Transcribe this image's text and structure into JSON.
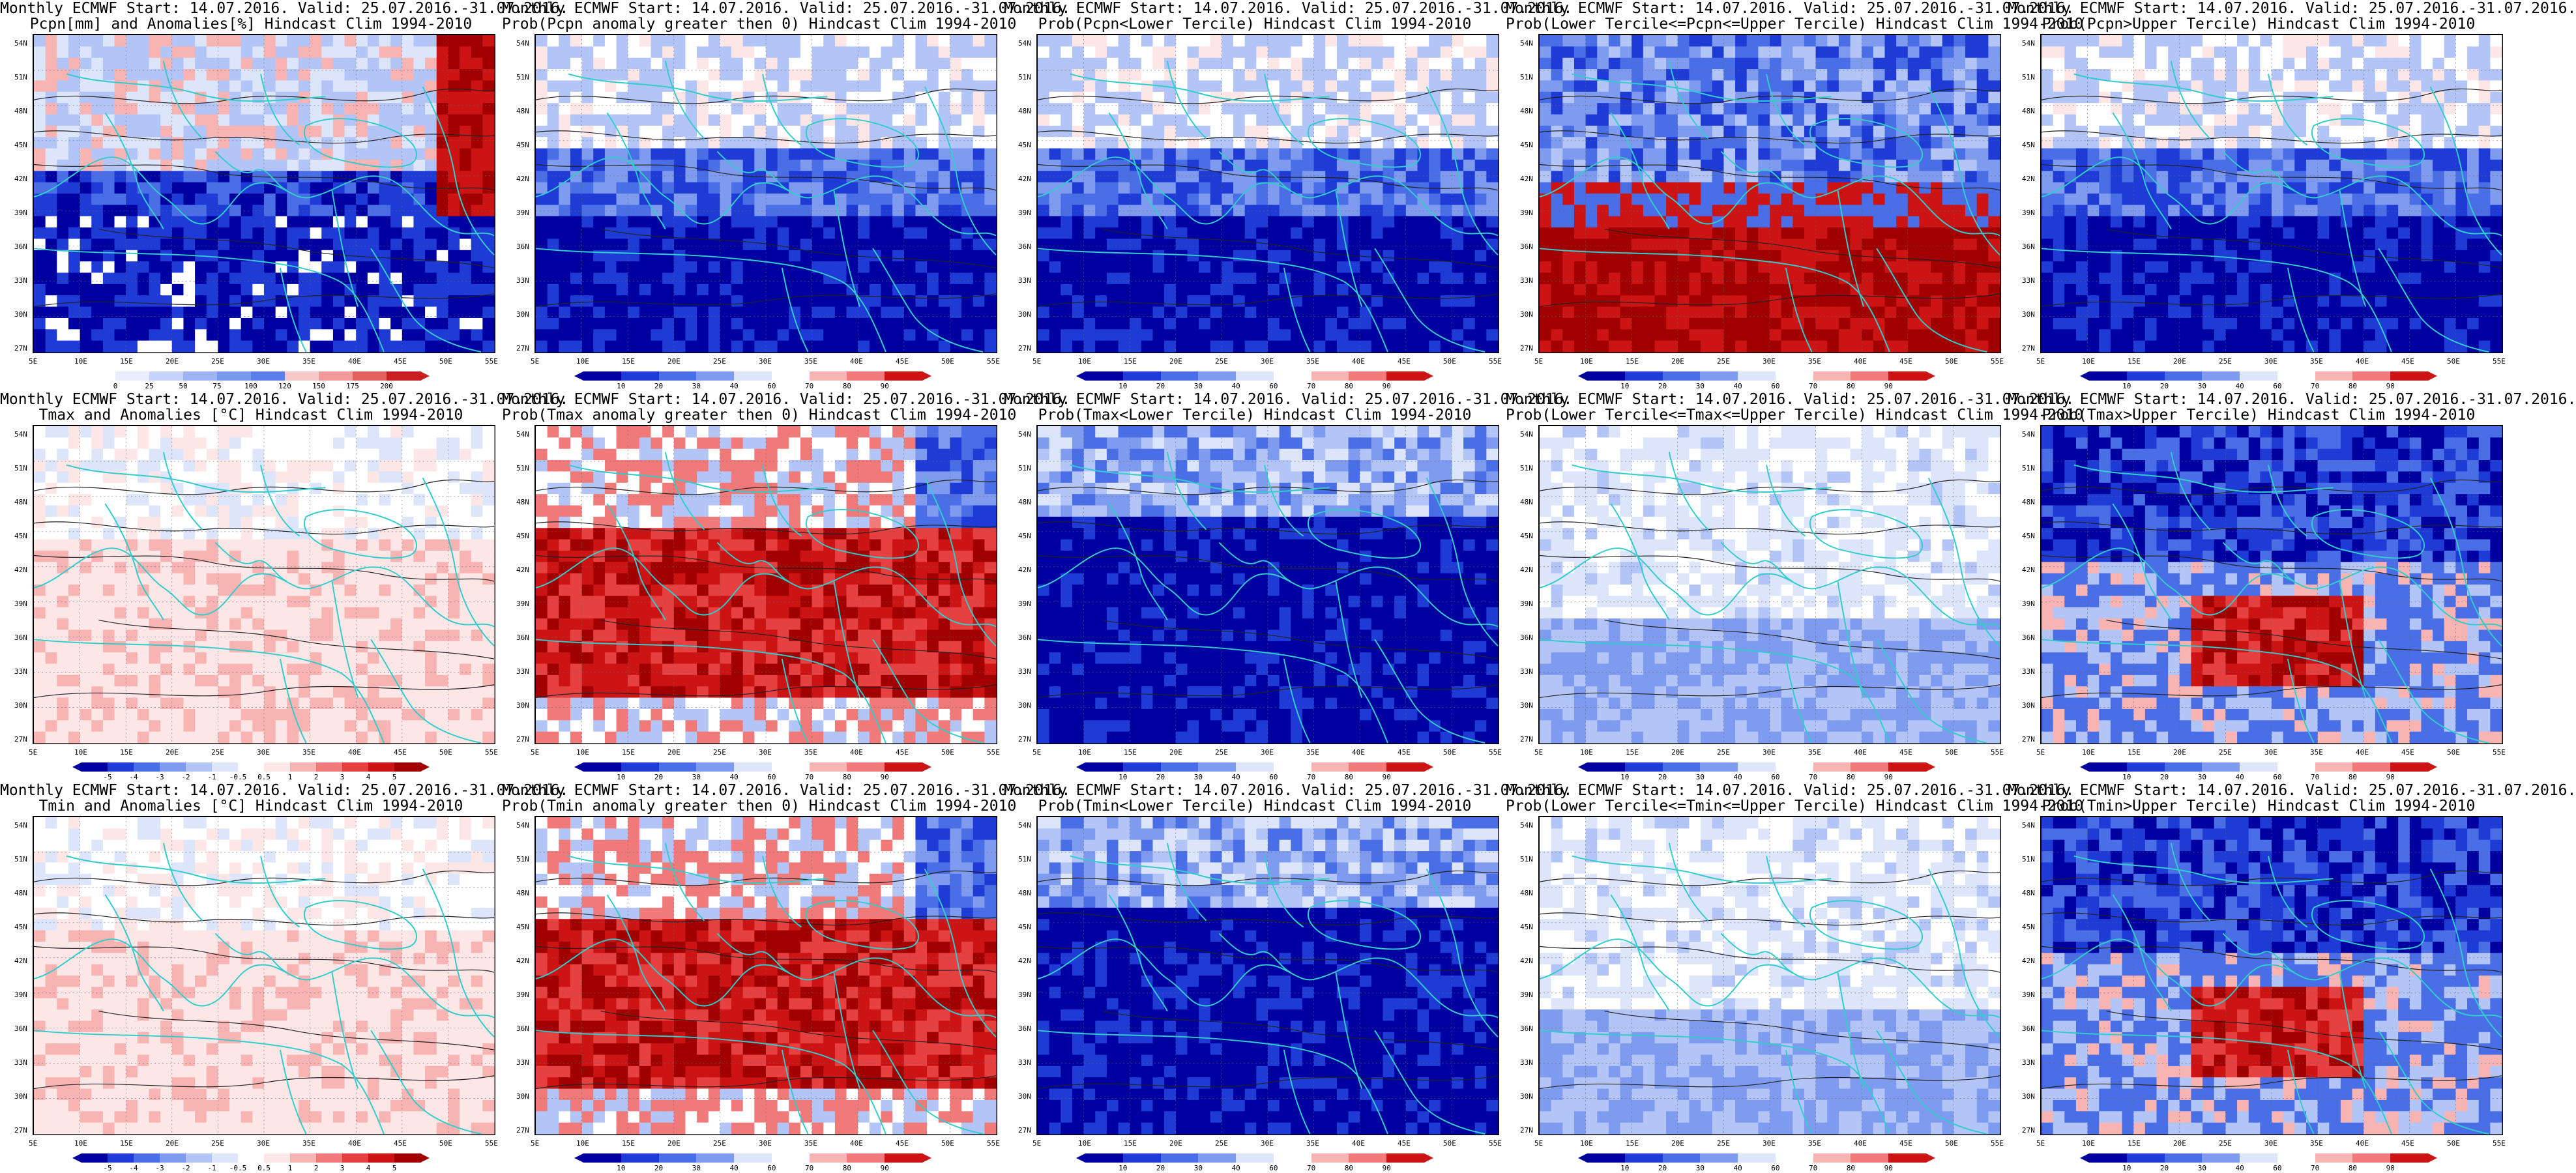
{
  "grid": {
    "rows": 3,
    "cols": 5
  },
  "colors": {
    "blue_scale": [
      "#0000a0",
      "#1f3bd6",
      "#4a6ee6",
      "#7e9bef",
      "#b3c4f6",
      "#dde5fb"
    ],
    "red_scale": [
      "#fde6e6",
      "#f8b3b3",
      "#f07a7a",
      "#e64040",
      "#cc1414",
      "#a00000"
    ],
    "coast": "#33cccc",
    "contour": "#222222"
  },
  "axes": {
    "lat_labels": [
      "54N",
      "51N",
      "48N",
      "45N",
      "42N",
      "39N",
      "36N",
      "33N",
      "30N",
      "27N"
    ],
    "lon_labels": [
      "5E",
      "10E",
      "15E",
      "20E",
      "25E",
      "30E",
      "35E",
      "40E",
      "45E",
      "50E",
      "55E"
    ]
  },
  "panels": [
    {
      "title1": "Monthly ECMWF Start: 14.07.2016. Valid: 25.07.2016.-31.07.2016.",
      "title2": "Pcpn[mm] and Anomalies[%] Hindcast Clim 1994-2010",
      "scheme": "pcpn",
      "cbar": [
        "0",
        "25",
        "50",
        "75",
        "100",
        "120",
        "150",
        "175",
        "200"
      ]
    },
    {
      "title1": "Monthly ECMWF Start: 14.07.2016. Valid: 25.07.2016.-31.07.2016.",
      "title2": "Prob(Pcpn anomaly greater then 0) Hindcast Clim 1994-2010",
      "scheme": "bluedom",
      "cbar": [
        "10",
        "20",
        "30",
        "40",
        "60",
        "70",
        "80",
        "90"
      ]
    },
    {
      "title1": "Monthly ECMWF Start: 14.07.2016. Valid: 25.07.2016.-31.07.2016.",
      "title2": "Prob(Pcpn<Lower Tercile) Hindcast Clim 1994-2010",
      "scheme": "bluedom",
      "cbar": [
        "10",
        "20",
        "30",
        "40",
        "60",
        "70",
        "80",
        "90"
      ]
    },
    {
      "title1": "Monthly ECMWF Start: 14.07.2016. Valid: 25.07.2016.-31.07.2016.",
      "title2": "Prob(Lower Tercile<=Pcpn<=Upper Tercile) Hindcast Clim 1994-2010",
      "scheme": "redsouth",
      "cbar": [
        "10",
        "20",
        "30",
        "40",
        "60",
        "70",
        "80",
        "90"
      ]
    },
    {
      "title1": "Monthly ECMWF Start: 14.07.2016. Valid: 25.07.2016.-31.07.2016.",
      "title2": "Prob(Pcpn>Upper Tercile) Hindcast Clim 1994-2010",
      "scheme": "bluedom",
      "cbar": [
        "10",
        "20",
        "30",
        "40",
        "60",
        "70",
        "80",
        "90"
      ]
    },
    {
      "title1": "Monthly ECMWF Start: 14.07.2016. Valid: 25.07.2016.-31.07.2016.",
      "title2": "Tmax and Anomalies [°C] Hindcast Clim 1994-2010",
      "scheme": "lightmix",
      "cbar": [
        "-5",
        "-4",
        "-3",
        "-2",
        "-1",
        "-0.5",
        "0.5",
        "1",
        "2",
        "3",
        "4",
        "5"
      ]
    },
    {
      "title1": "Monthly ECMWF Start: 14.07.2016. Valid: 25.07.2016.-31.07.2016.",
      "title2": "Prob(Tmax anomaly greater then 0) Hindcast Clim 1994-2010",
      "scheme": "reddom",
      "cbar": [
        "10",
        "20",
        "30",
        "40",
        "60",
        "70",
        "80",
        "90"
      ]
    },
    {
      "title1": "Monthly ECMWF Start: 14.07.2016. Valid: 25.07.2016.-31.07.2016.",
      "title2": "Prob(Tmax<Lower Tercile) Hindcast Clim 1994-2010",
      "scheme": "deepblue",
      "cbar": [
        "10",
        "20",
        "30",
        "40",
        "60",
        "70",
        "80",
        "90"
      ]
    },
    {
      "title1": "Monthly ECMWF Start: 14.07.2016. Valid: 25.07.2016.-31.07.2016.",
      "title2": "Prob(Lower Tercile<=Tmax<=Upper Tercile) Hindcast Clim 1994-2010",
      "scheme": "lightblue",
      "cbar": [
        "10",
        "20",
        "30",
        "40",
        "60",
        "70",
        "80",
        "90"
      ]
    },
    {
      "title1": "Monthly ECMWF Start: 14.07.2016. Valid: 25.07.2016.-31.07.2016.",
      "title2": "Prob(Tmax>Upper Tercile) Hindcast Clim 1994-2010",
      "scheme": "bluered",
      "cbar": [
        "10",
        "20",
        "30",
        "40",
        "60",
        "70",
        "80",
        "90"
      ]
    },
    {
      "title1": "Monthly ECMWF Start: 14.07.2016. Valid: 25.07.2016.-31.07.2016.",
      "title2": "Tmin and Anomalies [°C] Hindcast Clim 1994-2010",
      "scheme": "lightmix",
      "cbar": [
        "-5",
        "-4",
        "-3",
        "-2",
        "-1",
        "-0.5",
        "0.5",
        "1",
        "2",
        "3",
        "4",
        "5"
      ]
    },
    {
      "title1": "Monthly ECMWF Start: 14.07.2016. Valid: 25.07.2016.-31.07.2016.",
      "title2": "Prob(Tmin anomaly greater then 0) Hindcast Clim 1994-2010",
      "scheme": "reddom",
      "cbar": [
        "10",
        "20",
        "30",
        "40",
        "60",
        "70",
        "80",
        "90"
      ]
    },
    {
      "title1": "Monthly ECMWF Start: 14.07.2016. Valid: 25.07.2016.-31.07.2016.",
      "title2": "Prob(Tmin<Lower Tercile) Hindcast Clim 1994-2010",
      "scheme": "deepblue",
      "cbar": [
        "10",
        "20",
        "30",
        "40",
        "60",
        "70",
        "80",
        "90"
      ]
    },
    {
      "title1": "Monthly ECMWF Start: 14.07.2016. Valid: 25.07.2016.-31.07.2016.",
      "title2": "Prob(Lower Tercile<=Tmin<=Upper Tercile) Hindcast Clim 1994-2010",
      "scheme": "lightblue",
      "cbar": [
        "10",
        "20",
        "30",
        "40",
        "60",
        "70",
        "80",
        "90"
      ]
    },
    {
      "title1": "Monthly ECMWF Start: 14.07.2016. Valid: 25.07.2016.-31.07.2016.",
      "title2": "Prob(Tmin>Upper Tercile) Hindcast Clim 1994-2010",
      "scheme": "bluered",
      "cbar": [
        "10",
        "20",
        "30",
        "40",
        "60",
        "70",
        "80",
        "90"
      ]
    }
  ]
}
